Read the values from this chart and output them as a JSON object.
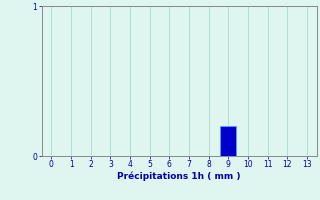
{
  "x_values": [
    0,
    1,
    2,
    3,
    4,
    5,
    6,
    7,
    8,
    9,
    10,
    11,
    12,
    13
  ],
  "y_values": [
    0,
    0,
    0,
    0,
    0,
    0,
    0,
    0,
    0,
    0.2,
    0,
    0,
    0,
    0
  ],
  "bar_color": "#0000CC",
  "bar_edge_color": "#44aaff",
  "xlim": [
    -0.5,
    13.5
  ],
  "ylim": [
    0,
    1.0
  ],
  "yticks": [
    0,
    1
  ],
  "xticks": [
    0,
    1,
    2,
    3,
    4,
    5,
    6,
    7,
    8,
    9,
    10,
    11,
    12,
    13
  ],
  "xlabel": "Précipitations 1h ( mm )",
  "background_color": "#dff5f0",
  "grid_color": "#b0ddd0",
  "tick_color": "#0000aa",
  "label_color": "#0000aa",
  "spine_color": "#888888",
  "bar_width": 0.8
}
